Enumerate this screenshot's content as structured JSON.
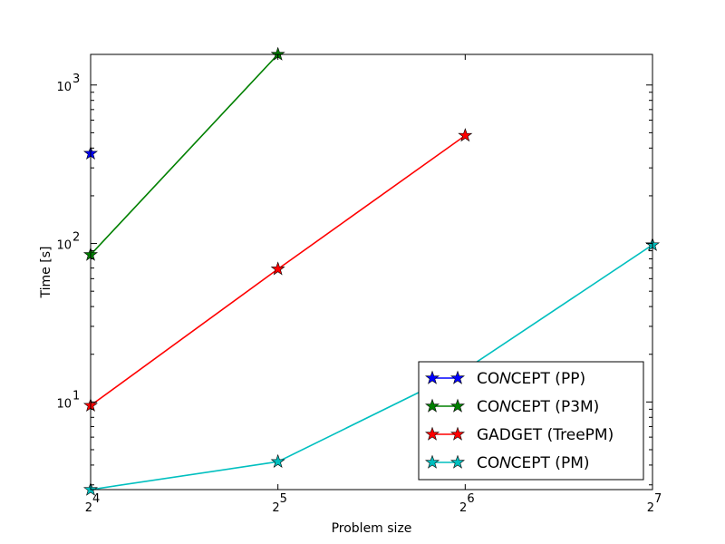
{
  "chart_data": {
    "type": "line",
    "xlabel": "Problem size",
    "ylabel": "Time [s]",
    "x_scale": "log2",
    "y_scale": "log10",
    "xlim": [
      16,
      128
    ],
    "ylim": [
      2.8,
      1560
    ],
    "x_ticks": [
      {
        "value": 16,
        "base": "2",
        "exp": "4"
      },
      {
        "value": 32,
        "base": "2",
        "exp": "5"
      },
      {
        "value": 64,
        "base": "2",
        "exp": "6"
      },
      {
        "value": 128,
        "base": "2",
        "exp": "7"
      }
    ],
    "y_ticks": [
      {
        "value": 10,
        "base": "10",
        "exp": "1"
      },
      {
        "value": 100,
        "base": "10",
        "exp": "2"
      },
      {
        "value": 1000,
        "base": "10",
        "exp": "3"
      }
    ],
    "grid": false,
    "legend": {
      "position": "lower-right"
    },
    "series": [
      {
        "name": "CO𝑁CEPT (PP)",
        "color": "#0000ff",
        "marker": "star",
        "points": [
          {
            "x": 16,
            "y": 370
          }
        ]
      },
      {
        "name": "CO𝑁CEPT (P3M)",
        "color": "#008000",
        "marker": "star",
        "points": [
          {
            "x": 16,
            "y": 85
          },
          {
            "x": 32,
            "y": 1560
          }
        ]
      },
      {
        "name": "GADGET (TreePM)",
        "color": "#ff0000",
        "marker": "star",
        "points": [
          {
            "x": 16,
            "y": 9.5
          },
          {
            "x": 32,
            "y": 69
          },
          {
            "x": 64,
            "y": 480
          }
        ]
      },
      {
        "name": "CO𝑁CEPT (PM)",
        "color": "#00bfbf",
        "marker": "star",
        "points": [
          {
            "x": 16,
            "y": 2.8
          },
          {
            "x": 32,
            "y": 4.2
          },
          {
            "x": 64,
            "y": 16
          },
          {
            "x": 128,
            "y": 98
          }
        ]
      }
    ]
  }
}
